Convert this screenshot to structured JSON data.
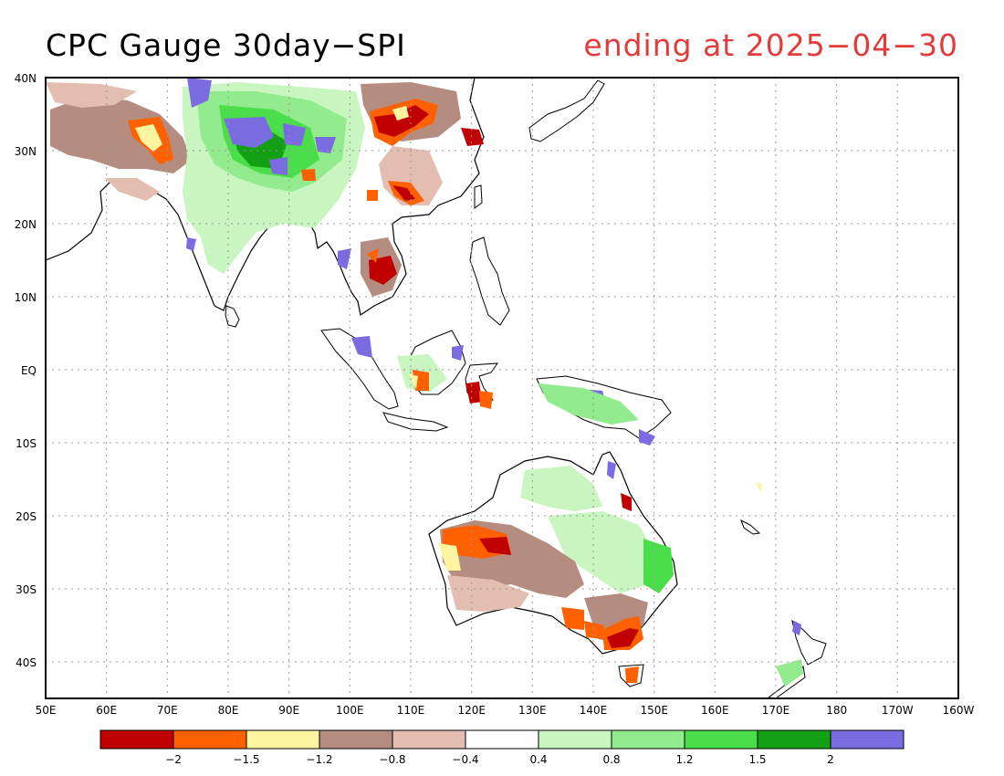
{
  "title": "CPC Gauge 30day−SPI",
  "subtitle": "ending at 2025−04−30",
  "map": {
    "lat_range": [
      -45,
      40
    ],
    "lon_range": [
      50,
      200
    ],
    "lat_ticks": [
      "40N",
      "30N",
      "20N",
      "10N",
      "EQ",
      "10S",
      "20S",
      "30S",
      "40S"
    ],
    "lon_ticks": [
      "50E",
      "60E",
      "70E",
      "80E",
      "90E",
      "100E",
      "110E",
      "120E",
      "130E",
      "140E",
      "150E",
      "160E",
      "170E",
      "180",
      "170W",
      "160W"
    ],
    "gridlines": "dotted"
  },
  "colorbar": {
    "colors": [
      "#c00000",
      "#ff6000",
      "#fff5a0",
      "#b48c80",
      "#e2bdb0",
      "#ffffff",
      "#c8f5c0",
      "#92eb8c",
      "#4ade4a",
      "#14a014",
      "#7a6be0"
    ],
    "labels": [
      "−2",
      "−1.5",
      "−1.2",
      "−0.8",
      "−0.4",
      "0.4",
      "0.8",
      "1.2",
      "1.5",
      "2"
    ]
  }
}
